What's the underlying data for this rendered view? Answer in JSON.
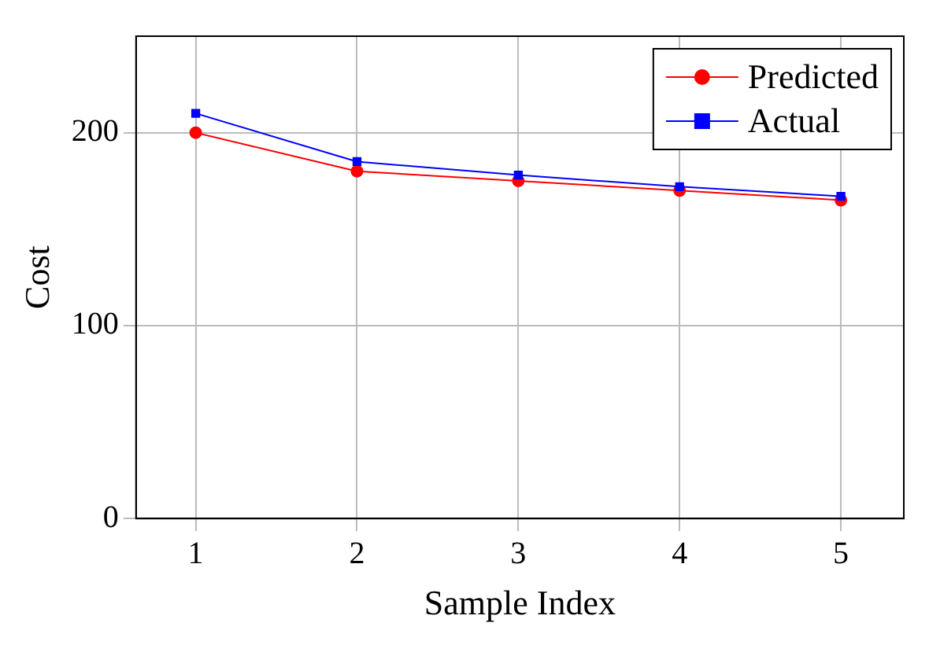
{
  "chart_data": {
    "type": "line",
    "xlabel": "Sample Index",
    "ylabel": "Cost",
    "x": [
      1,
      2,
      3,
      4,
      5
    ],
    "series": [
      {
        "name": "Predicted",
        "color": "#ff0000",
        "marker": "circle",
        "values": [
          200,
          180,
          175,
          170,
          165
        ]
      },
      {
        "name": "Actual",
        "color": "#0000ff",
        "marker": "square",
        "values": [
          210,
          185,
          178,
          172,
          167
        ]
      }
    ],
    "xlim": [
      0.63,
      5.39
    ],
    "xticks": [
      1,
      2,
      3,
      4,
      5
    ],
    "ylim": [
      0,
      250
    ],
    "yticks": [
      0,
      100,
      200
    ],
    "grid": true,
    "legend": "top right",
    "line_style": "solid"
  }
}
